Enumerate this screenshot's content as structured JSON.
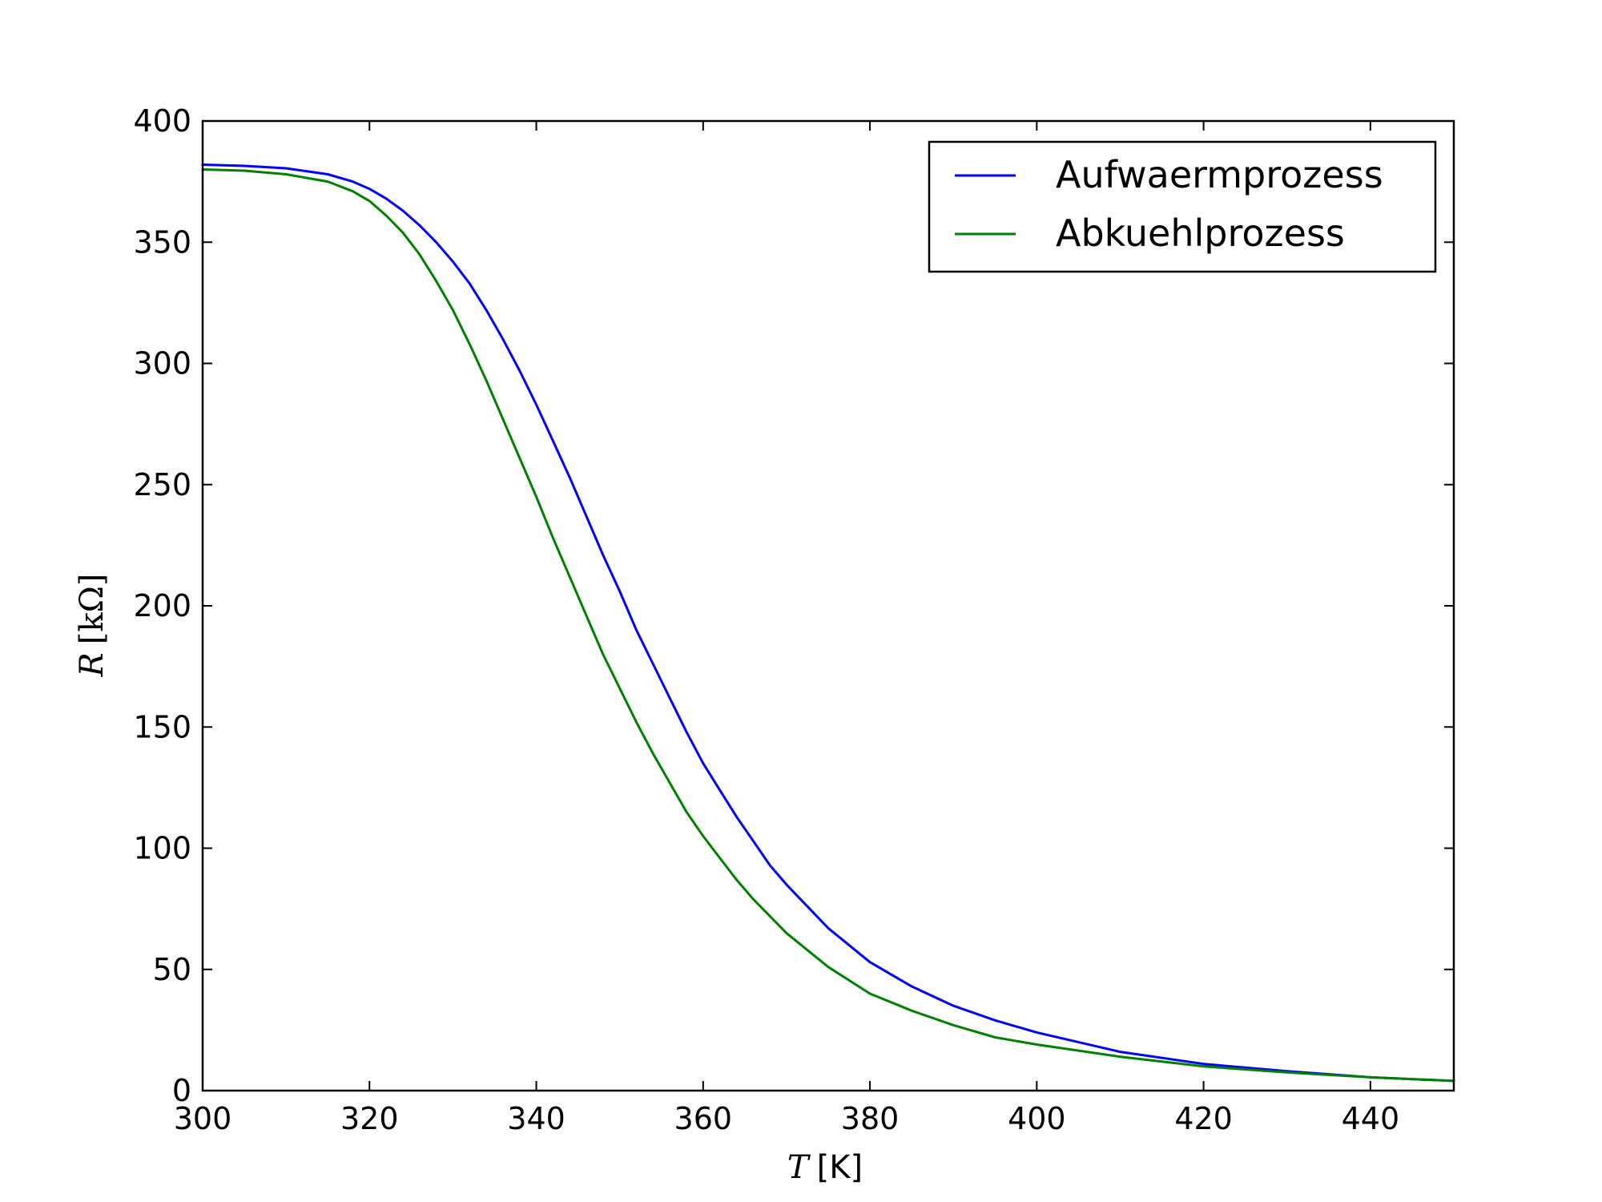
{
  "chart_data": {
    "type": "line",
    "title": "",
    "xlabel": {
      "symbol": "T",
      "unit": "[K]"
    },
    "ylabel": {
      "symbol": "R",
      "unit": "[kΩ]"
    },
    "xlim": [
      300,
      450
    ],
    "ylim": [
      0,
      400
    ],
    "xticks": [
      300,
      320,
      340,
      360,
      380,
      400,
      420,
      440
    ],
    "yticks": [
      0,
      50,
      100,
      150,
      200,
      250,
      300,
      350,
      400
    ],
    "grid": false,
    "legend": "top-right",
    "series": [
      {
        "name": "Aufwaermprozess",
        "color": "#0000ff",
        "x": [
          300,
          305,
          310,
          315,
          318,
          320,
          322,
          324,
          326,
          328,
          330,
          332,
          334,
          336,
          338,
          340,
          342,
          344,
          346,
          348,
          350,
          352,
          354,
          356,
          358,
          360,
          362,
          364,
          366,
          368,
          370,
          375,
          380,
          385,
          390,
          395,
          400,
          410,
          420,
          430,
          440,
          450
        ],
        "y": [
          382,
          381.5,
          380.5,
          378,
          375,
          372,
          368,
          363,
          357,
          350,
          342,
          333,
          322,
          310,
          297,
          283,
          268,
          253,
          237,
          221,
          206,
          190,
          176,
          162,
          148,
          135,
          124,
          113,
          103,
          93,
          85,
          67,
          53,
          43,
          35,
          29,
          24,
          16,
          11,
          8,
          5.5,
          4
        ]
      },
      {
        "name": "Abkuehlprozess",
        "color": "#008000",
        "x": [
          300,
          305,
          310,
          315,
          318,
          320,
          322,
          324,
          326,
          328,
          330,
          332,
          334,
          336,
          338,
          340,
          342,
          344,
          346,
          348,
          350,
          352,
          354,
          356,
          358,
          360,
          362,
          364,
          366,
          368,
          370,
          375,
          380,
          385,
          390,
          395,
          400,
          410,
          420,
          430,
          440,
          450
        ],
        "y": [
          380,
          379.5,
          378,
          375,
          371,
          367,
          361,
          354,
          345,
          334,
          322,
          308,
          293,
          277,
          261,
          245,
          228,
          212,
          196,
          180,
          166,
          152,
          139,
          127,
          115,
          105,
          96,
          87,
          79,
          72,
          65,
          51,
          40,
          33,
          27,
          22,
          19,
          14,
          10,
          7.5,
          5.5,
          4
        ]
      }
    ]
  }
}
